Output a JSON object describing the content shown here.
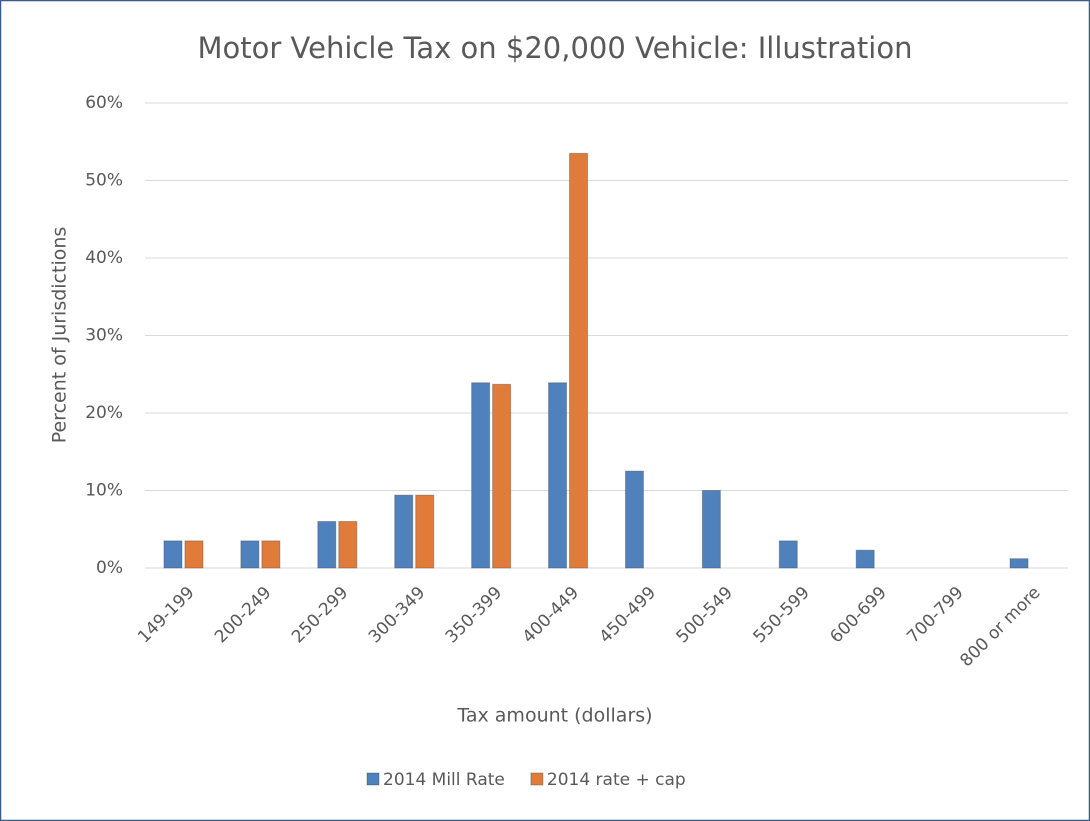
{
  "chart_data": {
    "type": "bar",
    "title": "Motor Vehicle Tax on $20,000 Vehicle: Illustration",
    "x_label": "Tax amount (dollars)",
    "y_label": "Percent of Jurisdictions",
    "categories": [
      "149-199",
      "200-249",
      "250-299",
      "300-349",
      "350-399",
      "400-449",
      "450-499",
      "500-549",
      "550-599",
      "600-699",
      "700-799",
      "800 or more"
    ],
    "series": [
      {
        "name": "2014 Mill Rate",
        "color": "#4f81bd",
        "values": [
          3.5,
          3.5,
          6,
          9.4,
          23.9,
          23.9,
          12.5,
          10,
          3.5,
          2.3,
          0,
          1.2
        ]
      },
      {
        "name": "2014 rate + cap",
        "color": "#e07b39",
        "values": [
          3.5,
          3.5,
          6,
          9.4,
          23.7,
          53.5,
          0,
          0,
          0,
          0,
          0,
          0
        ]
      }
    ],
    "ylim": [
      0,
      60
    ],
    "yticks": [
      {
        "value": 0,
        "label": "0%"
      },
      {
        "value": 10,
        "label": "10%"
      },
      {
        "value": 20,
        "label": "20%"
      },
      {
        "value": 30,
        "label": "30%"
      },
      {
        "value": 40,
        "label": "40%"
      },
      {
        "value": 50,
        "label": "50%"
      },
      {
        "value": 60,
        "label": "60%"
      }
    ],
    "grid": true,
    "legend": "bottom"
  }
}
